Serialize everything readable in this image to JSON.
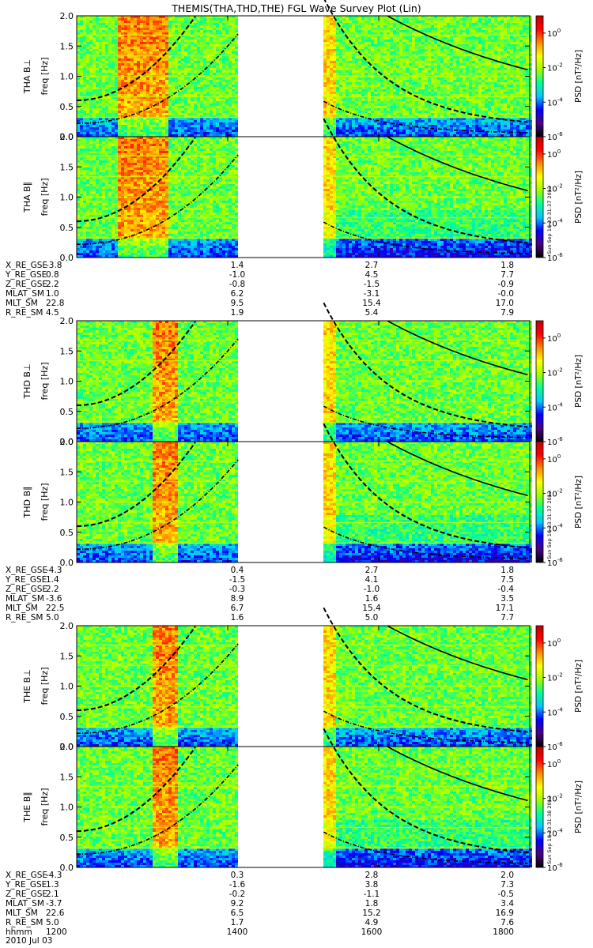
{
  "title": "THEMIS(THA,THD,THE) FGL Wave Survey Plot (Lin)",
  "date": "2010 Jul 03",
  "colors": {
    "dashed": "#000000",
    "gap": "#ffffff"
  },
  "chart_data": {
    "type": "heatmap",
    "x_axis": {
      "label": "hhmm",
      "range": [
        1200,
        1800
      ],
      "ticks": [
        "1200",
        "1400",
        "1600",
        "1800"
      ],
      "tick_values": [
        1200,
        1400,
        1600,
        1800
      ]
    },
    "y_axis": {
      "unit_label": "freq [Hz]",
      "range": [
        0.0,
        2.0
      ],
      "ticks": [
        "0.0",
        "0.5",
        "1.0",
        "1.5",
        "2.0"
      ]
    },
    "colorbar": {
      "label": "PSD [nT²/Hz]",
      "scale": "log",
      "range": [
        1e-06,
        10
      ],
      "ticks": [
        "10",
        "10",
        "10",
        "10"
      ],
      "exponents": [
        "0",
        "-2",
        "-4",
        "-6"
      ],
      "colors": [
        "#000000",
        "#4b0082",
        "#0000ff",
        "#00c8ff",
        "#00ff96",
        "#a0ff00",
        "#ffff00",
        "#ff8c00",
        "#ff0000",
        "#c00000"
      ]
    },
    "probes": [
      {
        "name": "THA",
        "panels": [
          {
            "label": "THA B⊥",
            "component": "perp",
            "stamp": ""
          },
          {
            "label": "THA B∥",
            "component": "par",
            "stamp": "Sun Sep 16 23:31:37 2012"
          }
        ],
        "gap": [
          1415,
          1525
        ],
        "orbit": {
          "labels": [
            "X_RE_GSE",
            "Y_RE_GSE",
            "Z_RE_GSE",
            "MLAT_SM",
            "MLT_SM",
            "R_RE_SM"
          ],
          "rows": [
            [
              "-3.8",
              "1.4",
              "2.7",
              "1.8"
            ],
            [
              "0.8",
              "-1.0",
              "4.5",
              "7.7"
            ],
            [
              "2.2",
              "-0.8",
              "-1.5",
              "-0.9"
            ],
            [
              "1.0",
              "6.2",
              "-3.1",
              "-0.0"
            ],
            [
              "22.8",
              "9.5",
              "15.4",
              "17.0"
            ],
            [
              "4.5",
              "1.9",
              "5.4",
              "7.9"
            ]
          ]
        }
      },
      {
        "name": "THD",
        "panels": [
          {
            "label": "THD B⊥",
            "component": "perp",
            "stamp": ""
          },
          {
            "label": "THD B∥",
            "component": "par",
            "stamp": "Sun Sep 16 23:31:37 2012"
          }
        ],
        "gap": [
          1415,
          1525
        ],
        "orbit": {
          "labels": [
            "X_RE_GSE",
            "Y_RE_GSE",
            "Z_RE_GSE",
            "MLAT_SM",
            "MLT_SM",
            "R_RE_SM"
          ],
          "rows": [
            [
              "-4.3",
              "0.4",
              "2.7",
              "1.8"
            ],
            [
              "1.4",
              "-1.5",
              "4.1",
              "7.5"
            ],
            [
              "2.2",
              "-0.3",
              "-1.0",
              "-0.4"
            ],
            [
              "-3.6",
              "8.9",
              "1.6",
              "3.5"
            ],
            [
              "22.5",
              "6.7",
              "15.4",
              "17.1"
            ],
            [
              "5.0",
              "1.6",
              "5.0",
              "7.7"
            ]
          ]
        }
      },
      {
        "name": "THE",
        "panels": [
          {
            "label": "THE B⊥",
            "component": "perp",
            "stamp": ""
          },
          {
            "label": "THE B∥",
            "component": "par",
            "stamp": "Sun Sep 16 23:31:38 2012"
          }
        ],
        "gap": [
          1415,
          1525
        ],
        "orbit": {
          "labels": [
            "X_RE_GSE",
            "Y_RE_GSE",
            "Z_RE_GSE",
            "MLAT_SM",
            "MLT_SM",
            "R_RE_SM"
          ],
          "rows": [
            [
              "-4.3",
              "0.3",
              "2.8",
              "2.0"
            ],
            [
              "1.3",
              "-1.6",
              "3.8",
              "7.3"
            ],
            [
              "2.1",
              "-0.2",
              "-1.1",
              "-0.5"
            ],
            [
              "-3.7",
              "9.2",
              "1.8",
              "3.4"
            ],
            [
              "22.6",
              "6.5",
              "15.2",
              "16.9"
            ],
            [
              "5.0",
              "1.7",
              "4.9",
              "7.6"
            ]
          ]
        }
      }
    ]
  }
}
